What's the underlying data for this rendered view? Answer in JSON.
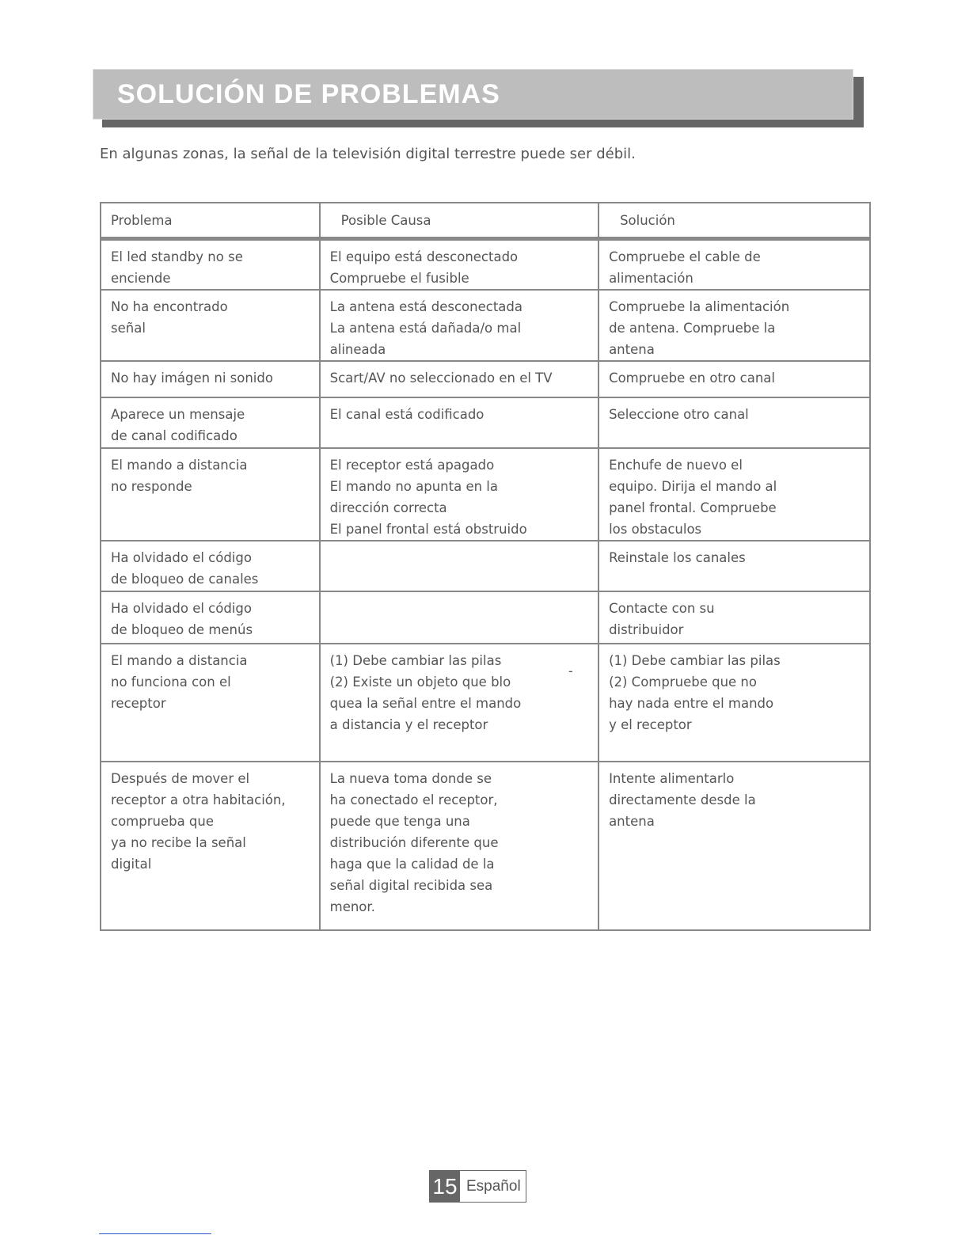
{
  "title": "SOLUCIÓN DE PROBLEMAS",
  "intro": "En algunas zonas, la señal de la televisión digital terrestre puede ser débil.",
  "table": {
    "headers": [
      "Problema",
      "Posible Causa",
      "Solución"
    ],
    "rows": [
      [
        [
          "El led standby no se",
          "enciende"
        ],
        [
          "El equipo está desconectado",
          "Compruebe el fusible"
        ],
        [
          "Compruebe el cable de",
          "alimentación"
        ]
      ],
      [
        [
          "No ha encontrado",
          "señal"
        ],
        [
          "La antena está desconectada",
          "La antena está dañada/o mal",
          "alineada"
        ],
        [
          "Compruebe la alimentación",
          "de antena. Compruebe la",
          "antena"
        ]
      ],
      [
        [
          "No hay imágen ni sonido"
        ],
        [
          "Scart/AV no seleccionado en el TV"
        ],
        [
          "Compruebe en otro canal"
        ]
      ],
      [
        [
          "Aparece un mensaje",
          "de canal codificado"
        ],
        [
          "El canal está codificado"
        ],
        [
          "Seleccione otro canal"
        ]
      ],
      [
        [
          "El mando a distancia",
          "no responde"
        ],
        [
          "El receptor está apagado",
          "El mando no apunta en la",
          "dirección correcta",
          "El panel frontal está obstruido"
        ],
        [
          "Enchufe de nuevo el",
          "equipo. Dirija el mando al",
          "panel frontal. Compruebe",
          "los obstaculos"
        ]
      ],
      [
        [
          "Ha olvidado el código",
          "de bloqueo de canales"
        ],
        [],
        [
          "Reinstale los canales"
        ]
      ],
      [
        [
          "Ha olvidado el código",
          "de bloqueo de menús"
        ],
        [],
        [
          "Contacte con su",
          "distribuidor"
        ]
      ],
      [
        [
          "El mando a distancia",
          "no funciona con el",
          "receptor"
        ],
        [
          "(1) Debe cambiar las pilas",
          "(2) Existe un objeto que blo",
          "quea la señal entre el mando",
          "a distancia y el receptor"
        ],
        [
          "(1) Debe cambiar las pilas",
          "(2) Compruebe que no",
          "hay nada entre el mando",
          "y el receptor"
        ]
      ],
      [
        [
          "Después de mover el",
          "receptor a otra habitación,",
          "comprueba que",
          "ya no recibe la señal",
          "digital"
        ],
        [
          "La nueva toma donde se",
          "ha conectado el receptor,",
          "puede que tenga una",
          "distribución diferente que",
          "haga que la calidad de la",
          "señal digital recibida sea",
          "menor."
        ],
        [
          "Intente alimentarlo",
          "directamente desde la",
          "antena"
        ]
      ]
    ],
    "stray_hyphen": "-"
  },
  "footer": {
    "page_number": "15",
    "language": "Español"
  }
}
